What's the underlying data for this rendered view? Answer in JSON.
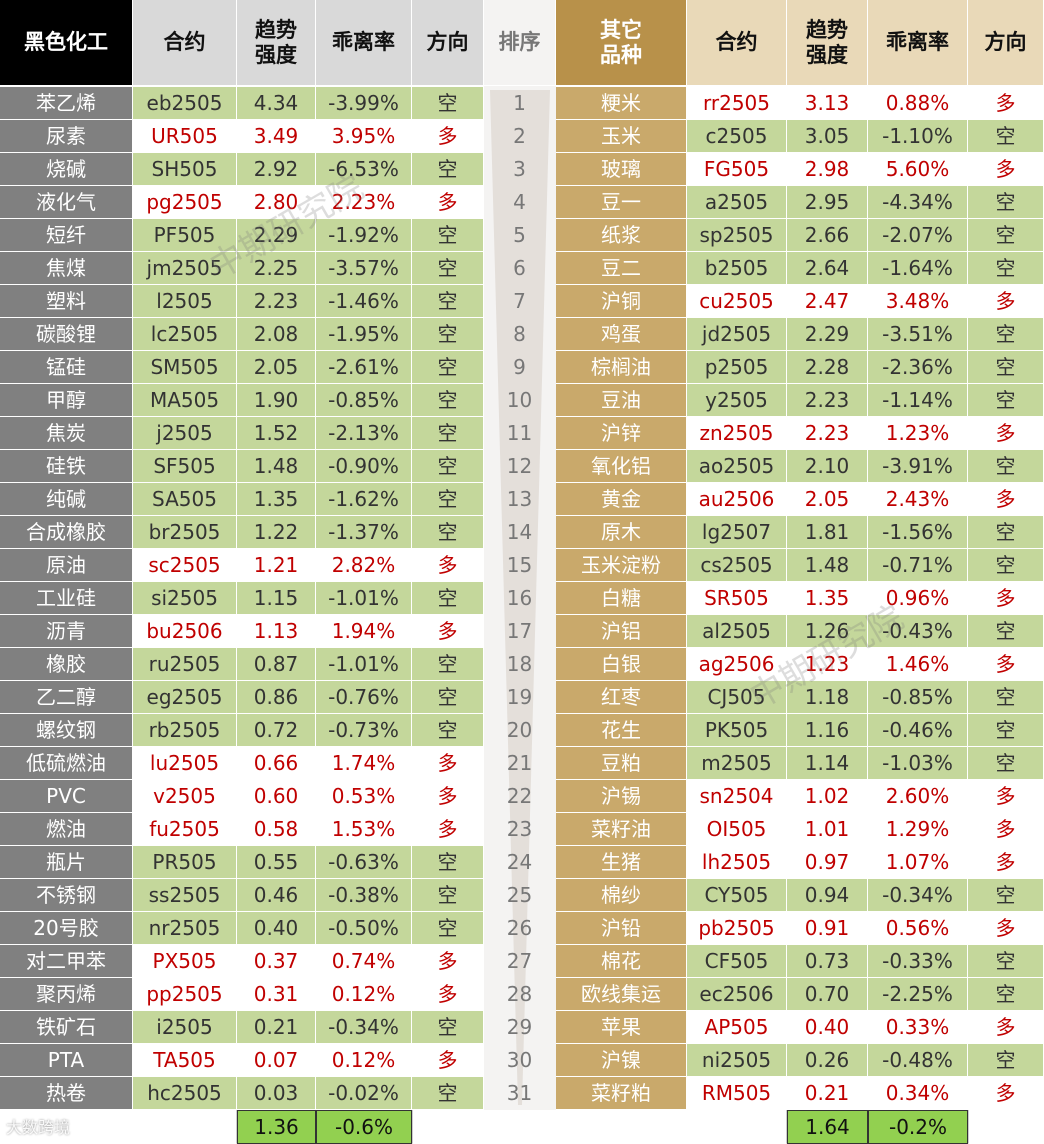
{
  "left": {
    "headers": [
      "黑色化工",
      "合约",
      "趋势\n强度",
      "乖离率",
      "方向"
    ],
    "rows": [
      [
        "苯乙烯",
        "eb2505",
        "4.34",
        "-3.99%",
        "空"
      ],
      [
        "尿素",
        "UR505",
        "3.49",
        "3.95%",
        "多"
      ],
      [
        "烧碱",
        "SH505",
        "2.92",
        "-6.53%",
        "空"
      ],
      [
        "液化气",
        "pg2505",
        "2.80",
        "2.23%",
        "多"
      ],
      [
        "短纤",
        "PF505",
        "2.29",
        "-1.92%",
        "空"
      ],
      [
        "焦煤",
        "jm2505",
        "2.25",
        "-3.57%",
        "空"
      ],
      [
        "塑料",
        "l2505",
        "2.23",
        "-1.46%",
        "空"
      ],
      [
        "碳酸锂",
        "lc2505",
        "2.08",
        "-1.95%",
        "空"
      ],
      [
        "锰硅",
        "SM505",
        "2.05",
        "-2.61%",
        "空"
      ],
      [
        "甲醇",
        "MA505",
        "1.90",
        "-0.85%",
        "空"
      ],
      [
        "焦炭",
        "j2505",
        "1.52",
        "-2.13%",
        "空"
      ],
      [
        "硅铁",
        "SF505",
        "1.48",
        "-0.90%",
        "空"
      ],
      [
        "纯碱",
        "SA505",
        "1.35",
        "-1.62%",
        "空"
      ],
      [
        "合成橡胶",
        "br2505",
        "1.22",
        "-1.37%",
        "空"
      ],
      [
        "原油",
        "sc2505",
        "1.21",
        "2.82%",
        "多"
      ],
      [
        "工业硅",
        "si2505",
        "1.15",
        "-1.01%",
        "空"
      ],
      [
        "沥青",
        "bu2506",
        "1.13",
        "1.94%",
        "多"
      ],
      [
        "橡胶",
        "ru2505",
        "0.87",
        "-1.01%",
        "空"
      ],
      [
        "乙二醇",
        "eg2505",
        "0.86",
        "-0.76%",
        "空"
      ],
      [
        "螺纹钢",
        "rb2505",
        "0.72",
        "-0.73%",
        "空"
      ],
      [
        "低硫燃油",
        "lu2505",
        "0.66",
        "1.74%",
        "多"
      ],
      [
        "PVC",
        "v2505",
        "0.60",
        "0.53%",
        "多"
      ],
      [
        "燃油",
        "fu2505",
        "0.58",
        "1.53%",
        "多"
      ],
      [
        "瓶片",
        "PR505",
        "0.55",
        "-0.63%",
        "空"
      ],
      [
        "不锈钢",
        "ss2505",
        "0.46",
        "-0.38%",
        "空"
      ],
      [
        "20号胶",
        "nr2505",
        "0.40",
        "-0.50%",
        "空"
      ],
      [
        "对二甲苯",
        "PX505",
        "0.37",
        "0.74%",
        "多"
      ],
      [
        "聚丙烯",
        "pp2505",
        "0.31",
        "0.12%",
        "多"
      ],
      [
        "铁矿石",
        "i2505",
        "0.21",
        "-0.34%",
        "空"
      ],
      [
        "PTA",
        "TA505",
        "0.07",
        "0.12%",
        "多"
      ],
      [
        "热卷",
        "hc2505",
        "0.03",
        "-0.02%",
        "空"
      ]
    ],
    "footer": [
      "1.36",
      "-0.6%"
    ]
  },
  "rank": {
    "header": "排序",
    "values": [
      "1",
      "2",
      "3",
      "4",
      "5",
      "6",
      "7",
      "8",
      "9",
      "10",
      "11",
      "12",
      "13",
      "14",
      "15",
      "16",
      "17",
      "18",
      "19",
      "20",
      "21",
      "22",
      "23",
      "24",
      "25",
      "26",
      "27",
      "28",
      "29",
      "30",
      "31"
    ]
  },
  "right": {
    "headers": [
      "其它\n品种",
      "合约",
      "趋势\n强度",
      "乖离率",
      "方向"
    ],
    "rows": [
      [
        "粳米",
        "rr2505",
        "3.13",
        "0.88%",
        "多"
      ],
      [
        "玉米",
        "c2505",
        "3.05",
        "-1.10%",
        "空"
      ],
      [
        "玻璃",
        "FG505",
        "2.98",
        "5.60%",
        "多"
      ],
      [
        "豆一",
        "a2505",
        "2.95",
        "-4.34%",
        "空"
      ],
      [
        "纸浆",
        "sp2505",
        "2.66",
        "-2.07%",
        "空"
      ],
      [
        "豆二",
        "b2505",
        "2.64",
        "-1.64%",
        "空"
      ],
      [
        "沪铜",
        "cu2505",
        "2.47",
        "3.48%",
        "多"
      ],
      [
        "鸡蛋",
        "jd2505",
        "2.29",
        "-3.51%",
        "空"
      ],
      [
        "棕榈油",
        "p2505",
        "2.28",
        "-2.36%",
        "空"
      ],
      [
        "豆油",
        "y2505",
        "2.23",
        "-1.14%",
        "空"
      ],
      [
        "沪锌",
        "zn2505",
        "2.23",
        "1.23%",
        "多"
      ],
      [
        "氧化铝",
        "ao2505",
        "2.10",
        "-3.91%",
        "空"
      ],
      [
        "黄金",
        "au2506",
        "2.05",
        "2.43%",
        "多"
      ],
      [
        "原木",
        "lg2507",
        "1.81",
        "-1.56%",
        "空"
      ],
      [
        "玉米淀粉",
        "cs2505",
        "1.48",
        "-0.71%",
        "空"
      ],
      [
        "白糖",
        "SR505",
        "1.35",
        "0.96%",
        "多"
      ],
      [
        "沪铝",
        "al2505",
        "1.26",
        "-0.43%",
        "空"
      ],
      [
        "白银",
        "ag2506",
        "1.23",
        "1.46%",
        "多"
      ],
      [
        "红枣",
        "CJ505",
        "1.18",
        "-0.85%",
        "空"
      ],
      [
        "花生",
        "PK505",
        "1.16",
        "-0.46%",
        "空"
      ],
      [
        "豆粕",
        "m2505",
        "1.14",
        "-1.03%",
        "空"
      ],
      [
        "沪锡",
        "sn2504",
        "1.02",
        "2.60%",
        "多"
      ],
      [
        "菜籽油",
        "OI505",
        "1.01",
        "1.29%",
        "多"
      ],
      [
        "生猪",
        "lh2505",
        "0.97",
        "1.07%",
        "多"
      ],
      [
        "棉纱",
        "CY505",
        "0.94",
        "-0.34%",
        "空"
      ],
      [
        "沪铅",
        "pb2505",
        "0.91",
        "0.56%",
        "多"
      ],
      [
        "棉花",
        "CF505",
        "0.73",
        "-0.33%",
        "空"
      ],
      [
        "欧线集运",
        "ec2506",
        "0.70",
        "-2.25%",
        "空"
      ],
      [
        "苹果",
        "AP505",
        "0.40",
        "0.33%",
        "多"
      ],
      [
        "沪镍",
        "ni2505",
        "0.26",
        "-0.48%",
        "空"
      ],
      [
        "菜籽粕",
        "RM505",
        "0.21",
        "0.34%",
        "多"
      ]
    ],
    "footer": [
      "1.64",
      "-0.2%"
    ]
  },
  "watermarks": [
    "中期研究院",
    "中期研究院"
  ],
  "logo": "大数跨境"
}
